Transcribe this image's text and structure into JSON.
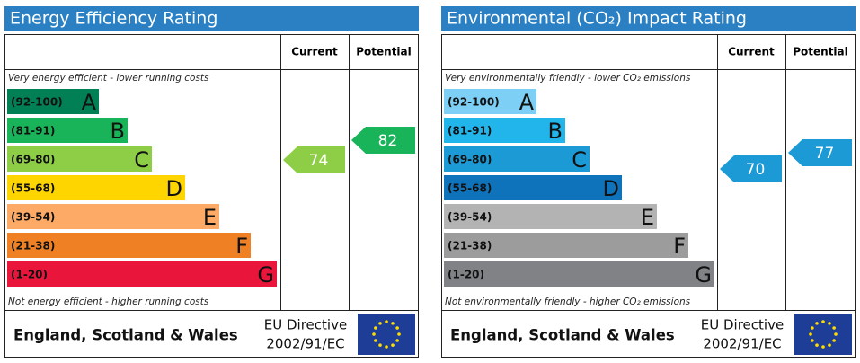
{
  "panels": [
    {
      "title": "Energy Efficiency Rating",
      "columns": [
        "Current",
        "Potential"
      ],
      "top_note": "Very energy efficient - lower running costs",
      "bottom_note": "Not energy efficient - higher running costs",
      "bands": [
        {
          "range": "(92-100)",
          "letter": "A",
          "color": "#008054"
        },
        {
          "range": "(81-91)",
          "letter": "B",
          "color": "#19b459"
        },
        {
          "range": "(69-80)",
          "letter": "C",
          "color": "#8dce46"
        },
        {
          "range": "(55-68)",
          "letter": "D",
          "color": "#ffd500"
        },
        {
          "range": "(39-54)",
          "letter": "E",
          "color": "#fcaa65"
        },
        {
          "range": "(21-38)",
          "letter": "F",
          "color": "#ef8023"
        },
        {
          "range": "(1-20)",
          "letter": "G",
          "color": "#e9153b"
        }
      ],
      "current": {
        "value": 74,
        "color": "#8dce46"
      },
      "potential": {
        "value": 82,
        "color": "#19b459"
      },
      "footer": {
        "region": "England, Scotland & Wales",
        "directive": [
          "EU Directive",
          "2002/91/EC"
        ]
      }
    },
    {
      "title": "Environmental (CO₂) Impact Rating",
      "columns": [
        "Current",
        "Potential"
      ],
      "top_note": "Very environmentally friendly - lower CO₂ emissions",
      "bottom_note": "Not environmentally friendly - higher CO₂ emissions",
      "bands": [
        {
          "range": "(92-100)",
          "letter": "A",
          "color": "#7dcff5"
        },
        {
          "range": "(81-91)",
          "letter": "B",
          "color": "#22b5eb"
        },
        {
          "range": "(69-80)",
          "letter": "C",
          "color": "#1c9ad6"
        },
        {
          "range": "(55-68)",
          "letter": "D",
          "color": "#0f73bc"
        },
        {
          "range": "(39-54)",
          "letter": "E",
          "color": "#b3b3b3"
        },
        {
          "range": "(21-38)",
          "letter": "F",
          "color": "#9c9c9c"
        },
        {
          "range": "(1-20)",
          "letter": "G",
          "color": "#808285"
        }
      ],
      "current": {
        "value": 70,
        "color": "#1c9ad6"
      },
      "potential": {
        "value": 77,
        "color": "#1c9ad6"
      },
      "footer": {
        "region": "England, Scotland & Wales",
        "directive": [
          "EU Directive",
          "2002/91/EC"
        ]
      }
    }
  ]
}
